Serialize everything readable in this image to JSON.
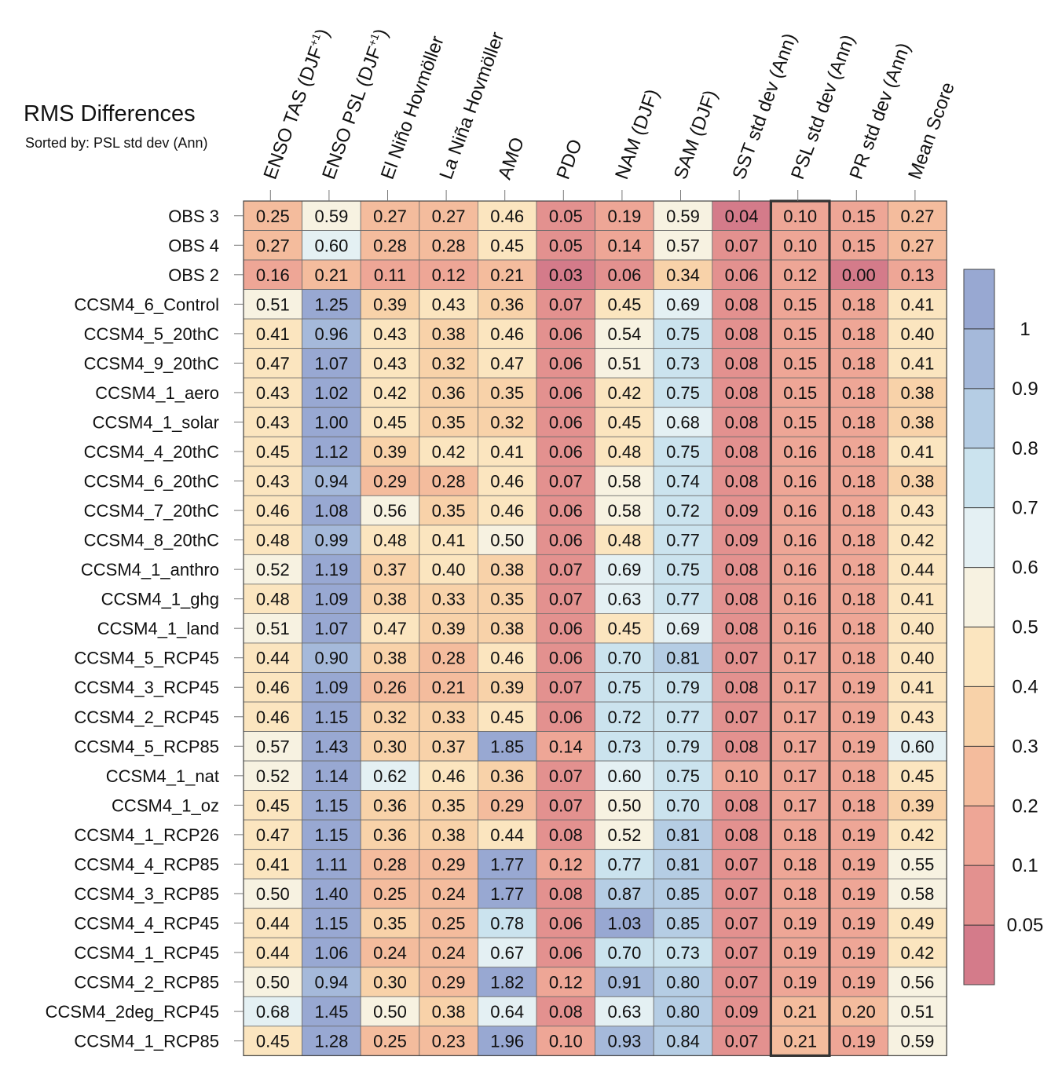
{
  "chart_data": {
    "type": "heatmap",
    "title": "RMS Differences",
    "subtitle": "Sorted by: PSL std dev (Ann)",
    "highlighted_column": "PSL std dev (Ann)",
    "columns": [
      {
        "pre": "ENSO TAS (DJF",
        "sup": "+1",
        "post": ")"
      },
      {
        "pre": "ENSO PSL (DJF",
        "sup": "+1",
        "post": ")"
      },
      {
        "pre": "El Niño Hovmöller",
        "sup": "",
        "post": ""
      },
      {
        "pre": "La Niña Hovmöller",
        "sup": "",
        "post": ""
      },
      {
        "pre": "AMO",
        "sup": "",
        "post": ""
      },
      {
        "pre": "PDO",
        "sup": "",
        "post": ""
      },
      {
        "pre": "NAM (DJF)",
        "sup": "",
        "post": ""
      },
      {
        "pre": "SAM (DJF)",
        "sup": "",
        "post": ""
      },
      {
        "pre": "SST std dev (Ann)",
        "sup": "",
        "post": ""
      },
      {
        "pre": "PSL std dev (Ann)",
        "sup": "",
        "post": ""
      },
      {
        "pre": "PR std dev (Ann)",
        "sup": "",
        "post": ""
      },
      {
        "pre": "Mean Score",
        "sup": "",
        "post": ""
      }
    ],
    "rows": [
      {
        "name": "OBS 3",
        "values": [
          0.25,
          0.59,
          0.27,
          0.27,
          0.46,
          0.05,
          0.19,
          0.59,
          0.04,
          0.1,
          0.15,
          0.27
        ]
      },
      {
        "name": "OBS 4",
        "values": [
          0.27,
          0.6,
          0.28,
          0.28,
          0.45,
          0.05,
          0.14,
          0.57,
          0.07,
          0.1,
          0.15,
          0.27
        ]
      },
      {
        "name": "OBS 2",
        "values": [
          0.16,
          0.21,
          0.11,
          0.12,
          0.21,
          0.03,
          0.06,
          0.34,
          0.06,
          0.12,
          0.0,
          0.13
        ]
      },
      {
        "name": "CCSM4_6_Control",
        "values": [
          0.51,
          1.25,
          0.39,
          0.43,
          0.36,
          0.07,
          0.45,
          0.69,
          0.08,
          0.15,
          0.18,
          0.41
        ]
      },
      {
        "name": "CCSM4_5_20thC",
        "values": [
          0.41,
          0.96,
          0.43,
          0.38,
          0.46,
          0.06,
          0.54,
          0.75,
          0.08,
          0.15,
          0.18,
          0.4
        ]
      },
      {
        "name": "CCSM4_9_20thC",
        "values": [
          0.47,
          1.07,
          0.43,
          0.32,
          0.47,
          0.06,
          0.51,
          0.73,
          0.08,
          0.15,
          0.18,
          0.41
        ]
      },
      {
        "name": "CCSM4_1_aero",
        "values": [
          0.43,
          1.02,
          0.42,
          0.36,
          0.35,
          0.06,
          0.42,
          0.75,
          0.08,
          0.15,
          0.18,
          0.38
        ]
      },
      {
        "name": "CCSM4_1_solar",
        "values": [
          0.43,
          1.0,
          0.45,
          0.35,
          0.32,
          0.06,
          0.45,
          0.68,
          0.08,
          0.15,
          0.18,
          0.38
        ]
      },
      {
        "name": "CCSM4_4_20thC",
        "values": [
          0.45,
          1.12,
          0.39,
          0.42,
          0.41,
          0.06,
          0.48,
          0.75,
          0.08,
          0.16,
          0.18,
          0.41
        ]
      },
      {
        "name": "CCSM4_6_20thC",
        "values": [
          0.43,
          0.94,
          0.29,
          0.28,
          0.46,
          0.07,
          0.58,
          0.74,
          0.08,
          0.16,
          0.18,
          0.38
        ]
      },
      {
        "name": "CCSM4_7_20thC",
        "values": [
          0.46,
          1.08,
          0.56,
          0.35,
          0.46,
          0.06,
          0.58,
          0.72,
          0.09,
          0.16,
          0.18,
          0.43
        ]
      },
      {
        "name": "CCSM4_8_20thC",
        "values": [
          0.48,
          0.99,
          0.48,
          0.41,
          0.5,
          0.06,
          0.48,
          0.77,
          0.09,
          0.16,
          0.18,
          0.42
        ]
      },
      {
        "name": "CCSM4_1_anthro",
        "values": [
          0.52,
          1.19,
          0.37,
          0.4,
          0.38,
          0.07,
          0.69,
          0.75,
          0.08,
          0.16,
          0.18,
          0.44
        ]
      },
      {
        "name": "CCSM4_1_ghg",
        "values": [
          0.48,
          1.09,
          0.38,
          0.33,
          0.35,
          0.07,
          0.63,
          0.77,
          0.08,
          0.16,
          0.18,
          0.41
        ]
      },
      {
        "name": "CCSM4_1_land",
        "values": [
          0.51,
          1.07,
          0.47,
          0.39,
          0.38,
          0.06,
          0.45,
          0.69,
          0.08,
          0.16,
          0.18,
          0.4
        ]
      },
      {
        "name": "CCSM4_5_RCP45",
        "values": [
          0.44,
          0.9,
          0.38,
          0.28,
          0.46,
          0.06,
          0.7,
          0.81,
          0.07,
          0.17,
          0.18,
          0.4
        ]
      },
      {
        "name": "CCSM4_3_RCP45",
        "values": [
          0.46,
          1.09,
          0.26,
          0.21,
          0.39,
          0.07,
          0.75,
          0.79,
          0.08,
          0.17,
          0.19,
          0.41
        ]
      },
      {
        "name": "CCSM4_2_RCP45",
        "values": [
          0.46,
          1.15,
          0.32,
          0.33,
          0.45,
          0.06,
          0.72,
          0.77,
          0.07,
          0.17,
          0.19,
          0.43
        ]
      },
      {
        "name": "CCSM4_5_RCP85",
        "values": [
          0.57,
          1.43,
          0.3,
          0.37,
          1.85,
          0.14,
          0.73,
          0.79,
          0.08,
          0.17,
          0.19,
          0.6
        ]
      },
      {
        "name": "CCSM4_1_nat",
        "values": [
          0.52,
          1.14,
          0.62,
          0.46,
          0.36,
          0.07,
          0.6,
          0.75,
          0.1,
          0.17,
          0.18,
          0.45
        ]
      },
      {
        "name": "CCSM4_1_oz",
        "values": [
          0.45,
          1.15,
          0.36,
          0.35,
          0.29,
          0.07,
          0.5,
          0.7,
          0.08,
          0.17,
          0.18,
          0.39
        ]
      },
      {
        "name": "CCSM4_1_RCP26",
        "values": [
          0.47,
          1.15,
          0.36,
          0.38,
          0.44,
          0.08,
          0.52,
          0.81,
          0.08,
          0.18,
          0.19,
          0.42
        ]
      },
      {
        "name": "CCSM4_4_RCP85",
        "values": [
          0.41,
          1.11,
          0.28,
          0.29,
          1.77,
          0.12,
          0.77,
          0.81,
          0.07,
          0.18,
          0.19,
          0.55
        ]
      },
      {
        "name": "CCSM4_3_RCP85",
        "values": [
          0.5,
          1.4,
          0.25,
          0.24,
          1.77,
          0.08,
          0.87,
          0.85,
          0.07,
          0.18,
          0.19,
          0.58
        ]
      },
      {
        "name": "CCSM4_4_RCP45",
        "values": [
          0.44,
          1.15,
          0.35,
          0.25,
          0.78,
          0.06,
          1.03,
          0.85,
          0.07,
          0.19,
          0.19,
          0.49
        ]
      },
      {
        "name": "CCSM4_1_RCP45",
        "values": [
          0.44,
          1.06,
          0.24,
          0.24,
          0.67,
          0.06,
          0.7,
          0.73,
          0.07,
          0.19,
          0.19,
          0.42
        ]
      },
      {
        "name": "CCSM4_2_RCP85",
        "values": [
          0.5,
          0.94,
          0.3,
          0.29,
          1.82,
          0.12,
          0.91,
          0.8,
          0.07,
          0.19,
          0.19,
          0.56
        ]
      },
      {
        "name": "CCSM4_2deg_RCP45",
        "values": [
          0.68,
          1.45,
          0.5,
          0.38,
          0.64,
          0.08,
          0.63,
          0.8,
          0.09,
          0.21,
          0.2,
          0.51
        ]
      },
      {
        "name": "CCSM4_1_RCP85",
        "values": [
          0.45,
          1.28,
          0.25,
          0.23,
          1.96,
          0.1,
          0.93,
          0.84,
          0.07,
          0.21,
          0.19,
          0.59
        ]
      }
    ],
    "colorbar": {
      "levels": [
        0.05,
        0.1,
        0.2,
        0.3,
        0.4,
        0.5,
        0.6,
        0.7,
        0.8,
        0.9,
        1
      ],
      "labels": [
        "0.05",
        "0.1",
        "0.2",
        "0.3",
        "0.4",
        "0.5",
        "0.6",
        "0.7",
        "0.8",
        "0.9",
        "1"
      ],
      "colors": [
        "#d47b8a",
        "#e3918f",
        "#eea696",
        "#f4bc9d",
        "#f8d2a9",
        "#fbe5bf",
        "#f7f2e1",
        "#e4f0f3",
        "#cbe3ee",
        "#b5cde4",
        "#a5b9da",
        "#98a8d2"
      ]
    }
  }
}
